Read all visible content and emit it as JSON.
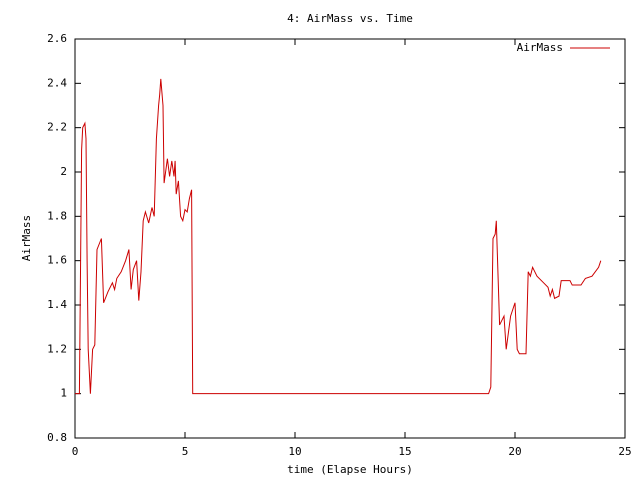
{
  "chart_data": {
    "type": "line",
    "title": "4: AirMass vs. Time",
    "xlabel": "time (Elapse Hours)",
    "ylabel": "AirMass",
    "x": [
      0,
      0.1,
      0.2,
      0.3,
      0.35,
      0.45,
      0.5,
      0.55,
      0.6,
      0.7,
      0.8,
      0.9,
      1.0,
      1.2,
      1.3,
      1.5,
      1.7,
      1.8,
      1.9,
      2.1,
      2.3,
      2.45,
      2.55,
      2.65,
      2.8,
      2.9,
      3.0,
      3.1,
      3.2,
      3.35,
      3.5,
      3.6,
      3.7,
      3.8,
      3.85,
      3.9,
      4.0,
      4.05,
      4.2,
      4.3,
      4.4,
      4.5,
      4.55,
      4.6,
      4.7,
      4.8,
      4.9,
      5.0,
      5.1,
      5.2,
      5.3,
      5.35,
      18.8,
      18.9,
      19.0,
      19.1,
      19.15,
      19.3,
      19.5,
      19.6,
      19.8,
      20.0,
      20.1,
      20.2,
      20.5,
      20.6,
      20.7,
      20.8,
      21.0,
      21.3,
      21.5,
      21.6,
      21.7,
      21.8,
      22.0,
      22.1,
      22.5,
      22.6,
      23.0,
      23.2,
      23.5,
      23.8,
      23.9
    ],
    "series": [
      {
        "name": "AirMass",
        "color": "#cc0000",
        "values": [
          1.0,
          1.0,
          1.0,
          2.1,
          2.2,
          2.22,
          2.15,
          1.6,
          1.2,
          1.0,
          1.2,
          1.22,
          1.65,
          1.7,
          1.41,
          1.46,
          1.5,
          1.47,
          1.52,
          1.55,
          1.6,
          1.65,
          1.47,
          1.56,
          1.6,
          1.42,
          1.55,
          1.78,
          1.82,
          1.77,
          1.84,
          1.8,
          2.15,
          2.3,
          2.35,
          2.42,
          2.3,
          1.95,
          2.06,
          1.98,
          2.05,
          1.98,
          2.05,
          1.9,
          1.96,
          1.8,
          1.78,
          1.83,
          1.82,
          1.88,
          1.92,
          1.0,
          1.0,
          1.03,
          1.7,
          1.72,
          1.78,
          1.31,
          1.35,
          1.2,
          1.35,
          1.41,
          1.2,
          1.18,
          1.18,
          1.55,
          1.53,
          1.57,
          1.53,
          1.5,
          1.48,
          1.44,
          1.47,
          1.43,
          1.44,
          1.51,
          1.51,
          1.49,
          1.49,
          1.52,
          1.53,
          1.57,
          1.6
        ]
      }
    ],
    "xlim": [
      0,
      25
    ],
    "xticks": [
      0,
      5,
      10,
      15,
      20,
      25
    ],
    "ylim": [
      0.8,
      2.6
    ],
    "yticks": [
      0.8,
      1,
      1.2,
      1.4,
      1.6,
      1.8,
      2,
      2.2,
      2.4,
      2.6
    ],
    "legend": "upper right"
  }
}
